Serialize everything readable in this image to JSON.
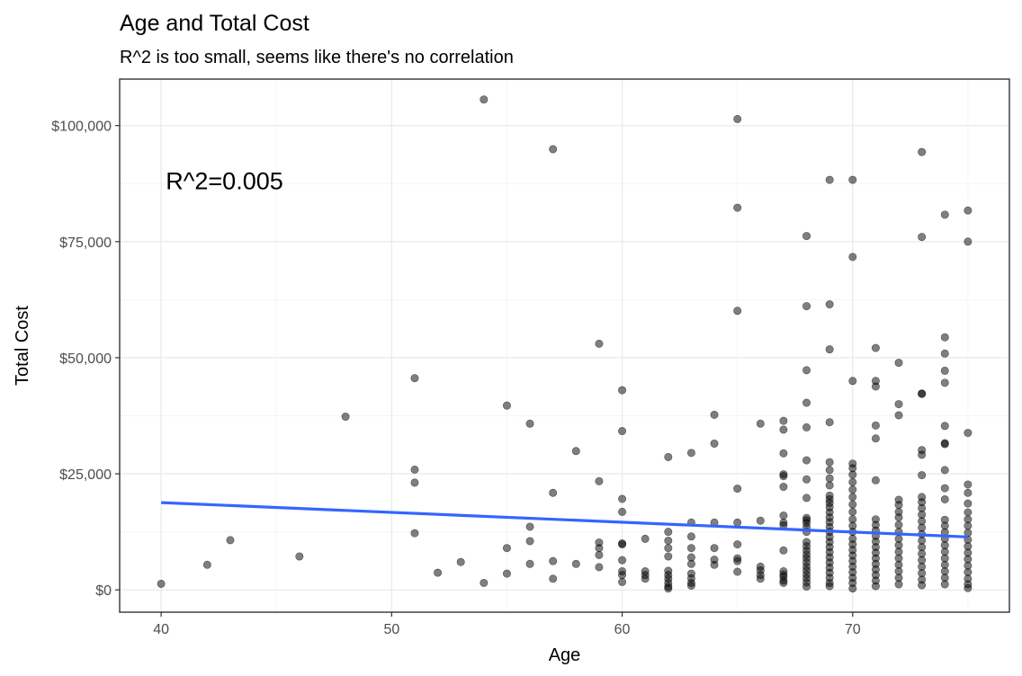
{
  "chart_data": {
    "type": "scatter",
    "title": "Age and Total Cost",
    "subtitle": "R^2 is too small, seems like there's no correlation",
    "xlabel": "Age",
    "ylabel": "Total Cost",
    "xlim": [
      38.2,
      76.8
    ],
    "ylim": [
      -4800,
      110000
    ],
    "x_ticks": [
      40,
      50,
      60,
      70
    ],
    "x_tick_labels": [
      "40",
      "50",
      "60",
      "70"
    ],
    "y_ticks": [
      0,
      25000,
      50000,
      75000,
      100000
    ],
    "y_tick_labels": [
      "$0",
      "$25,000",
      "$50,000",
      "$75,000",
      "$100,000"
    ],
    "grid": true,
    "annotation": {
      "text": "R^2=0.005",
      "x": 40.2,
      "y": 88000
    },
    "trend_line": {
      "x": [
        40,
        75
      ],
      "y": [
        18800,
        11400
      ],
      "color": "#3366ff"
    },
    "point_color": "#000000",
    "points": [
      [
        40,
        1300
      ],
      [
        42,
        5400
      ],
      [
        43,
        10700
      ],
      [
        46,
        7200
      ],
      [
        48,
        37300
      ],
      [
        51,
        45600
      ],
      [
        51,
        25900
      ],
      [
        51,
        23100
      ],
      [
        51,
        12200
      ],
      [
        52,
        3700
      ],
      [
        53,
        6000
      ],
      [
        54,
        105600
      ],
      [
        54,
        1500
      ],
      [
        55,
        39700
      ],
      [
        55,
        9000
      ],
      [
        55,
        3500
      ],
      [
        56,
        35800
      ],
      [
        56,
        13600
      ],
      [
        56,
        10500
      ],
      [
        56,
        5600
      ],
      [
        57,
        94900
      ],
      [
        57,
        20900
      ],
      [
        57,
        6200
      ],
      [
        57,
        2400
      ],
      [
        58,
        29900
      ],
      [
        58,
        5600
      ],
      [
        59,
        53000
      ],
      [
        59,
        23400
      ],
      [
        59,
        10200
      ],
      [
        59,
        9000
      ],
      [
        59,
        7500
      ],
      [
        59,
        4900
      ],
      [
        60,
        43000
      ],
      [
        60,
        34200
      ],
      [
        60,
        19600
      ],
      [
        60,
        16800
      ],
      [
        60,
        10000
      ],
      [
        60,
        6400
      ],
      [
        60,
        4000
      ],
      [
        60,
        1700
      ],
      [
        60,
        9800
      ],
      [
        60,
        3200
      ],
      [
        61,
        11000
      ],
      [
        61,
        4000
      ],
      [
        61,
        3200
      ],
      [
        61,
        2400
      ],
      [
        62,
        28600
      ],
      [
        62,
        12500
      ],
      [
        62,
        10600
      ],
      [
        62,
        9000
      ],
      [
        62,
        7200
      ],
      [
        62,
        4100
      ],
      [
        62,
        3200
      ],
      [
        62,
        2400
      ],
      [
        62,
        1500
      ],
      [
        62,
        700
      ],
      [
        62,
        300
      ],
      [
        63,
        29500
      ],
      [
        63,
        14500
      ],
      [
        63,
        11500
      ],
      [
        63,
        9000
      ],
      [
        63,
        7000
      ],
      [
        63,
        5600
      ],
      [
        63,
        3500
      ],
      [
        63,
        2500
      ],
      [
        63,
        1500
      ],
      [
        63,
        900
      ],
      [
        64,
        37700
      ],
      [
        64,
        31500
      ],
      [
        64,
        14500
      ],
      [
        64,
        9000
      ],
      [
        64,
        6500
      ],
      [
        64,
        5400
      ],
      [
        65,
        101400
      ],
      [
        65,
        82300
      ],
      [
        65,
        60100
      ],
      [
        65,
        21800
      ],
      [
        65,
        14500
      ],
      [
        65,
        9800
      ],
      [
        65,
        6800
      ],
      [
        65,
        6200
      ],
      [
        65,
        3900
      ],
      [
        66,
        35800
      ],
      [
        66,
        14900
      ],
      [
        66,
        5000
      ],
      [
        66,
        4200
      ],
      [
        66,
        3200
      ],
      [
        66,
        2400
      ],
      [
        67,
        36400
      ],
      [
        67,
        34500
      ],
      [
        67,
        29400
      ],
      [
        67,
        24900
      ],
      [
        67,
        24500
      ],
      [
        67,
        22200
      ],
      [
        67,
        16000
      ],
      [
        67,
        14500
      ],
      [
        67,
        13900
      ],
      [
        67,
        8500
      ],
      [
        67,
        4000
      ],
      [
        67,
        3300
      ],
      [
        67,
        2800
      ],
      [
        67,
        2000
      ],
      [
        67,
        1500
      ],
      [
        68,
        76200
      ],
      [
        68,
        61100
      ],
      [
        68,
        47300
      ],
      [
        68,
        40300
      ],
      [
        68,
        35000
      ],
      [
        68,
        27900
      ],
      [
        68,
        23800
      ],
      [
        68,
        19800
      ],
      [
        68,
        15500
      ],
      [
        68,
        15000
      ],
      [
        68,
        14400
      ],
      [
        68,
        13500
      ],
      [
        68,
        12500
      ],
      [
        68,
        10300
      ],
      [
        68,
        9400
      ],
      [
        68,
        8500
      ],
      [
        68,
        7600
      ],
      [
        68,
        6800
      ],
      [
        68,
        5900
      ],
      [
        68,
        5000
      ],
      [
        68,
        4200
      ],
      [
        68,
        3300
      ],
      [
        68,
        2500
      ],
      [
        68,
        1600
      ],
      [
        68,
        700
      ],
      [
        69,
        88300
      ],
      [
        69,
        61500
      ],
      [
        69,
        51800
      ],
      [
        69,
        36100
      ],
      [
        69,
        27500
      ],
      [
        69,
        25800
      ],
      [
        69,
        24000
      ],
      [
        69,
        22500
      ],
      [
        69,
        20300
      ],
      [
        69,
        19500
      ],
      [
        69,
        18700
      ],
      [
        69,
        17800
      ],
      [
        69,
        16700
      ],
      [
        69,
        15600
      ],
      [
        69,
        14600
      ],
      [
        69,
        13500
      ],
      [
        69,
        12500
      ],
      [
        69,
        11400
      ],
      [
        69,
        10300
      ],
      [
        69,
        9200
      ],
      [
        69,
        8100
      ],
      [
        69,
        7000
      ],
      [
        69,
        5900
      ],
      [
        69,
        4800
      ],
      [
        69,
        3700
      ],
      [
        69,
        2600
      ],
      [
        69,
        1500
      ],
      [
        69,
        800
      ],
      [
        70,
        88300
      ],
      [
        70,
        71700
      ],
      [
        70,
        45000
      ],
      [
        70,
        27200
      ],
      [
        70,
        26200
      ],
      [
        70,
        24800
      ],
      [
        70,
        23200
      ],
      [
        70,
        21600
      ],
      [
        70,
        20000
      ],
      [
        70,
        18400
      ],
      [
        70,
        16800
      ],
      [
        70,
        15200
      ],
      [
        70,
        13800
      ],
      [
        70,
        12500
      ],
      [
        70,
        11000
      ],
      [
        70,
        9800
      ],
      [
        70,
        8600
      ],
      [
        70,
        7400
      ],
      [
        70,
        6200
      ],
      [
        70,
        5000
      ],
      [
        70,
        3800
      ],
      [
        70,
        2600
      ],
      [
        70,
        1500
      ],
      [
        70,
        300
      ],
      [
        71,
        52100
      ],
      [
        71,
        45000
      ],
      [
        71,
        43800
      ],
      [
        71,
        35400
      ],
      [
        71,
        32600
      ],
      [
        71,
        23600
      ],
      [
        71,
        15200
      ],
      [
        71,
        14000
      ],
      [
        71,
        12800
      ],
      [
        71,
        11600
      ],
      [
        71,
        10400
      ],
      [
        71,
        9200
      ],
      [
        71,
        8000
      ],
      [
        71,
        6800
      ],
      [
        71,
        5600
      ],
      [
        71,
        4400
      ],
      [
        71,
        3200
      ],
      [
        71,
        2000
      ],
      [
        71,
        800
      ],
      [
        72,
        48900
      ],
      [
        72,
        40000
      ],
      [
        72,
        37600
      ],
      [
        72,
        19400
      ],
      [
        72,
        18300
      ],
      [
        72,
        16800
      ],
      [
        72,
        15600
      ],
      [
        72,
        14000
      ],
      [
        72,
        12500
      ],
      [
        72,
        11000
      ],
      [
        72,
        9600
      ],
      [
        72,
        8200
      ],
      [
        72,
        6800
      ],
      [
        72,
        5400
      ],
      [
        72,
        4000
      ],
      [
        72,
        2600
      ],
      [
        72,
        1200
      ],
      [
        73,
        94300
      ],
      [
        73,
        76000
      ],
      [
        73,
        42300
      ],
      [
        73,
        42200
      ],
      [
        73,
        30100
      ],
      [
        73,
        29100
      ],
      [
        73,
        24700
      ],
      [
        73,
        20000
      ],
      [
        73,
        18900
      ],
      [
        73,
        17600
      ],
      [
        73,
        16200
      ],
      [
        73,
        14800
      ],
      [
        73,
        13400
      ],
      [
        73,
        12000
      ],
      [
        73,
        10600
      ],
      [
        73,
        9200
      ],
      [
        73,
        7800
      ],
      [
        73,
        6400
      ],
      [
        73,
        5000
      ],
      [
        73,
        3600
      ],
      [
        73,
        2200
      ],
      [
        73,
        1000
      ],
      [
        74,
        80800
      ],
      [
        74,
        54400
      ],
      [
        74,
        50900
      ],
      [
        74,
        47200
      ],
      [
        74,
        44600
      ],
      [
        74,
        35300
      ],
      [
        74,
        31600
      ],
      [
        74,
        31400
      ],
      [
        74,
        25800
      ],
      [
        74,
        21900
      ],
      [
        74,
        19500
      ],
      [
        74,
        15100
      ],
      [
        74,
        13800
      ],
      [
        74,
        12400
      ],
      [
        74,
        11000
      ],
      [
        74,
        9600
      ],
      [
        74,
        8200
      ],
      [
        74,
        6800
      ],
      [
        74,
        5400
      ],
      [
        74,
        4000
      ],
      [
        74,
        2600
      ],
      [
        74,
        1200
      ],
      [
        75,
        81700
      ],
      [
        75,
        75000
      ],
      [
        75,
        33800
      ],
      [
        75,
        22700
      ],
      [
        75,
        20900
      ],
      [
        75,
        18600
      ],
      [
        75,
        16700
      ],
      [
        75,
        15200
      ],
      [
        75,
        13800
      ],
      [
        75,
        12300
      ],
      [
        75,
        10800
      ],
      [
        75,
        9400
      ],
      [
        75,
        8000
      ],
      [
        75,
        6600
      ],
      [
        75,
        5200
      ],
      [
        75,
        3800
      ],
      [
        75,
        2400
      ],
      [
        75,
        1200
      ],
      [
        75,
        400
      ]
    ]
  }
}
